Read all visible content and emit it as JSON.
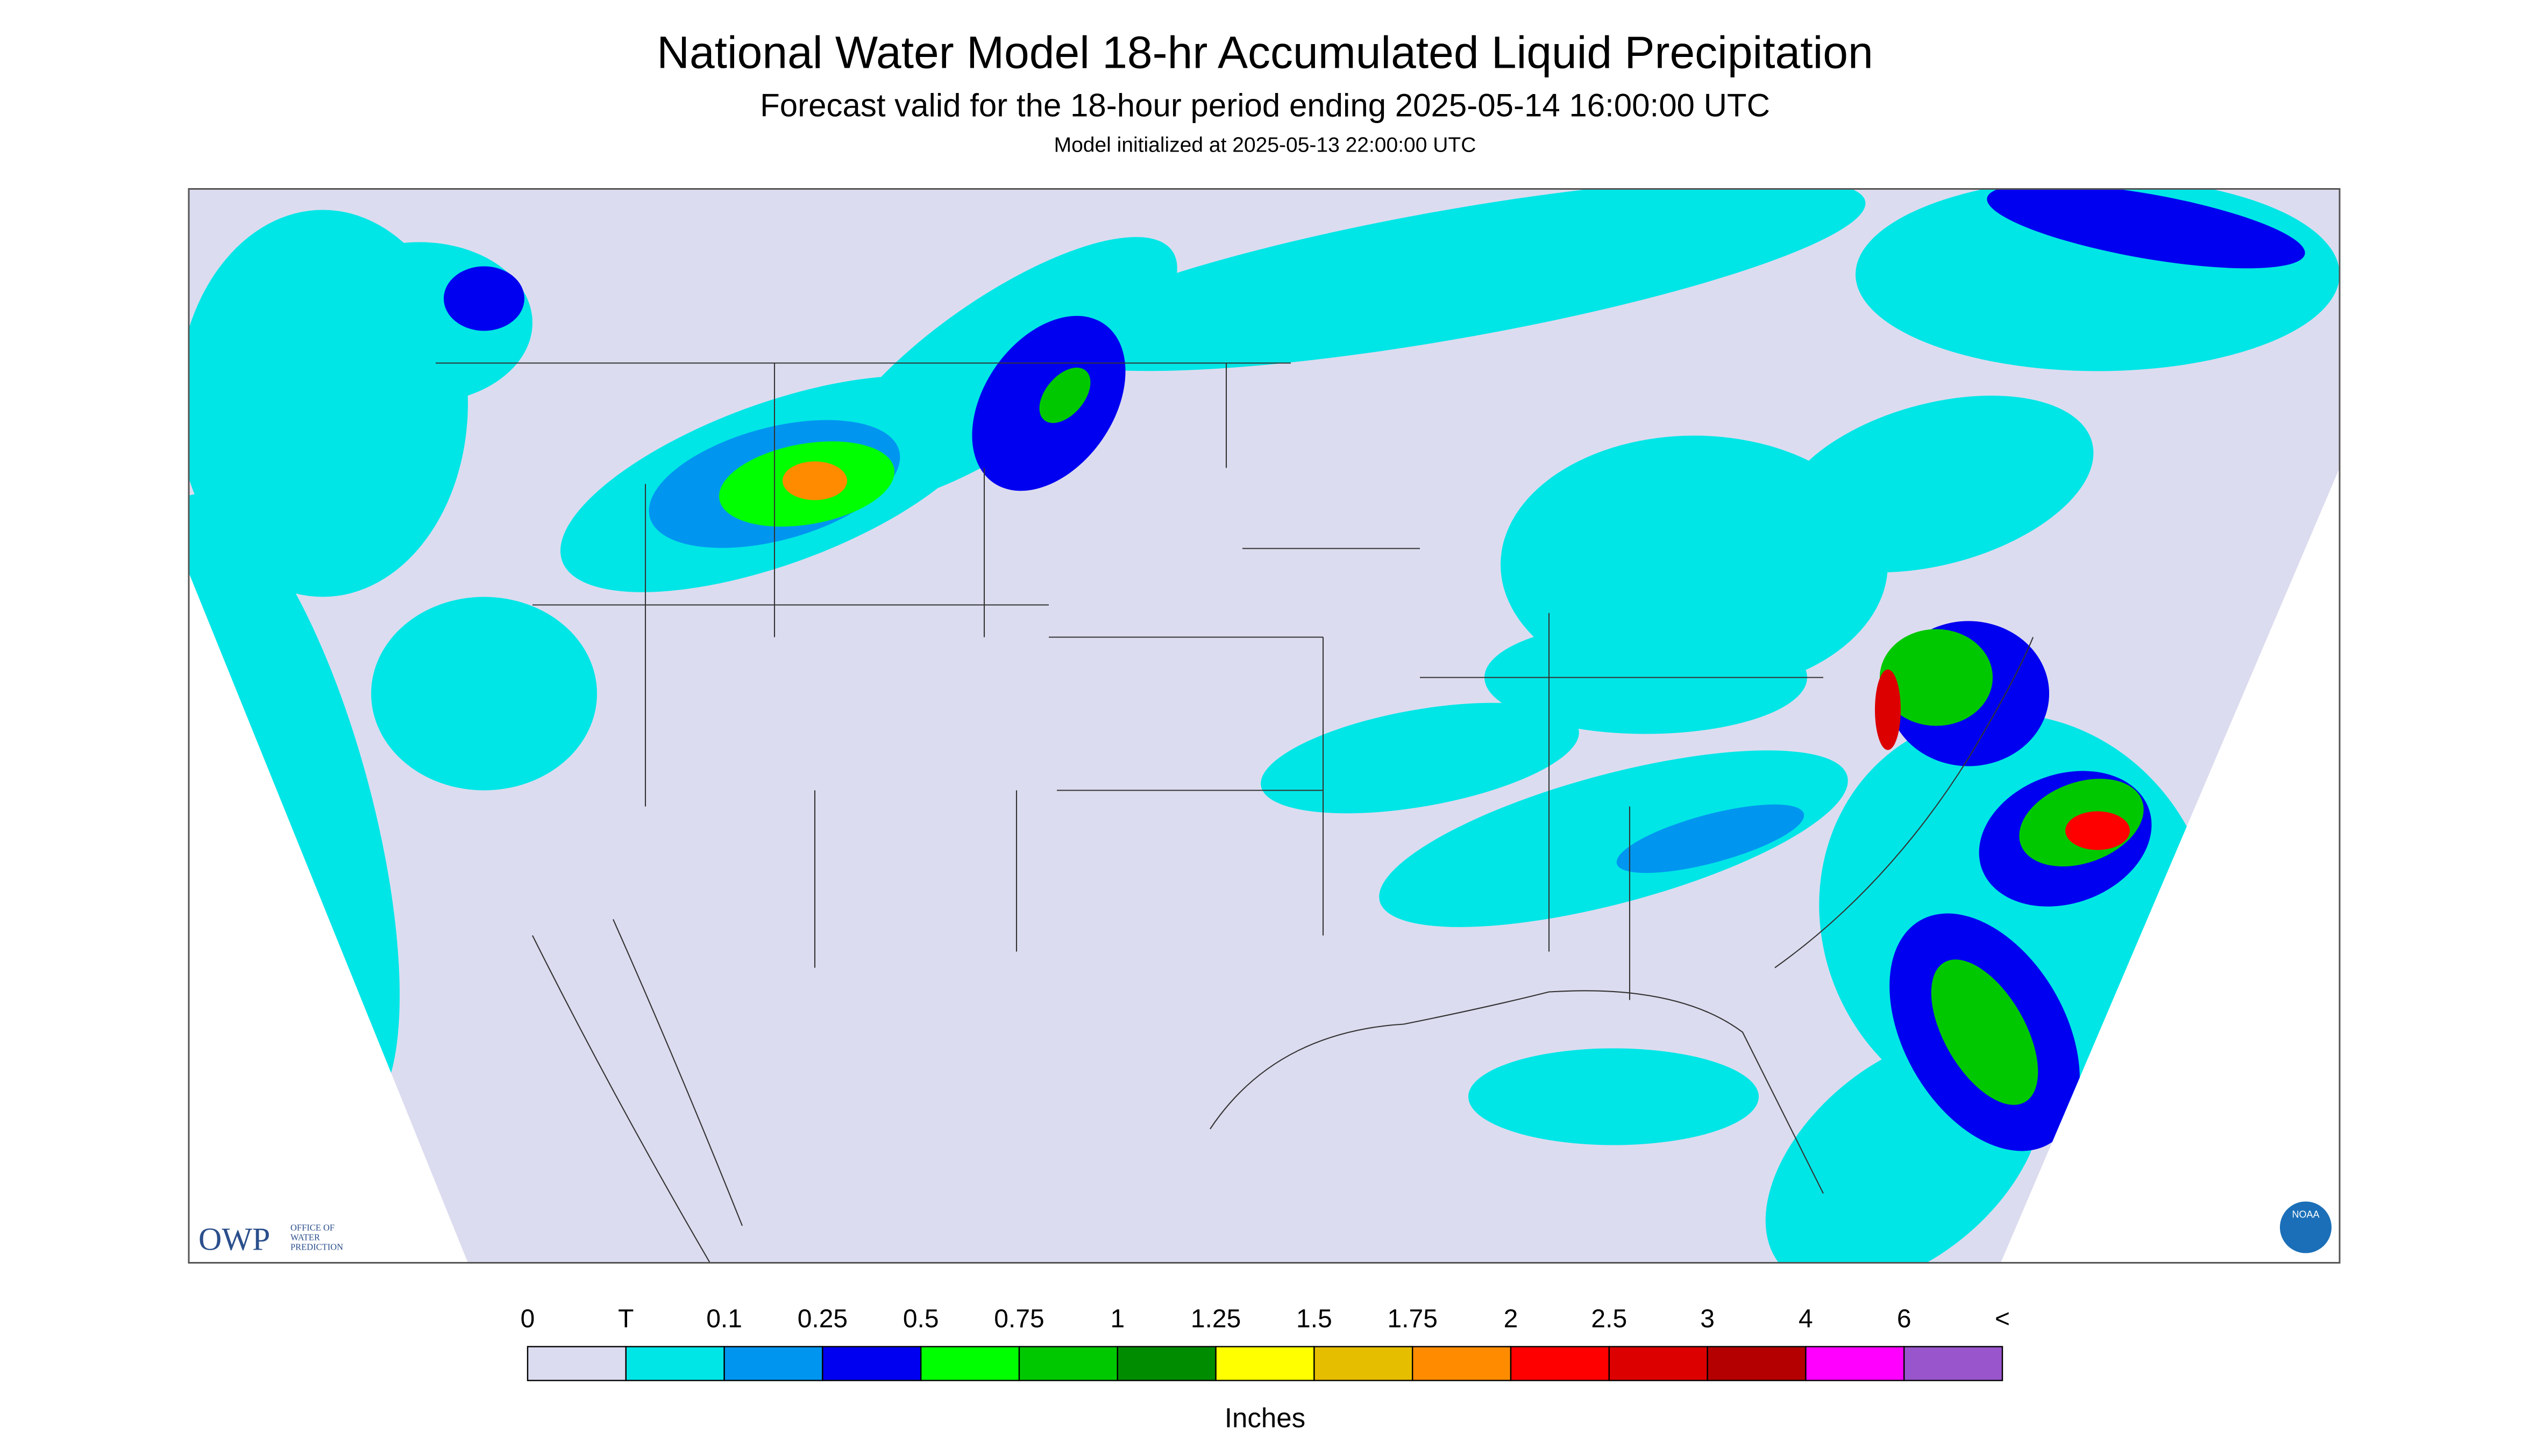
{
  "header": {
    "title": "National Water Model 18-hr Accumulated Liquid Precipitation",
    "subtitle": "Forecast valid for the 18-hour period ending 2025-05-14 16:00:00 UTC",
    "initialized": "Model initialized at 2025-05-13 22:00:00 UTC"
  },
  "map": {
    "logo": {
      "acronym": "OWP",
      "text": [
        "OFFICE OF",
        "WATER",
        "PREDICTION"
      ]
    },
    "badge": "NOAA"
  },
  "legend": {
    "labels": [
      "0",
      "T",
      "0.1",
      "0.25",
      "0.5",
      "0.75",
      "1",
      "1.25",
      "1.5",
      "1.75",
      "2",
      "2.5",
      "3",
      "4",
      "6",
      "<"
    ],
    "colors": [
      "#dcdcf0",
      "#00e6e6",
      "#0096f0",
      "#0000f0",
      "#00ff00",
      "#00c800",
      "#008c00",
      "#ffff00",
      "#e6be00",
      "#ff8c00",
      "#ff0000",
      "#dc0000",
      "#b40000",
      "#ff00ff",
      "#9955cc"
    ],
    "unit": "Inches"
  }
}
